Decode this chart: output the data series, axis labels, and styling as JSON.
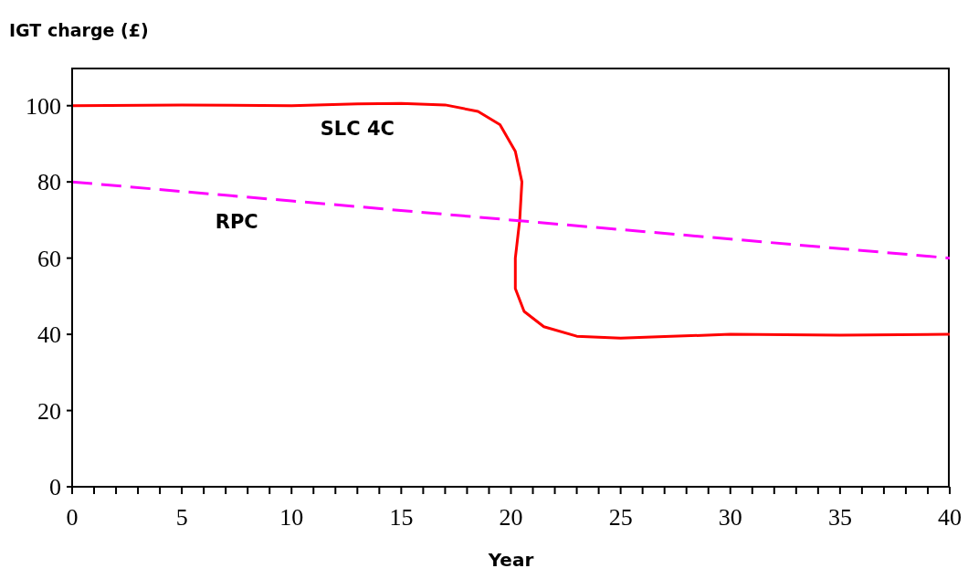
{
  "chart_data": {
    "type": "line",
    "ylabel": "IGT charge (£)",
    "xlabel": "Year",
    "xlim": [
      0,
      40
    ],
    "ylim": [
      0,
      110
    ],
    "xticks": [
      0,
      {
        "value": 1,
        "label": null
      },
      {
        "value": 2,
        "label": null
      },
      {
        "value": 3,
        "label": null
      },
      {
        "value": 4,
        "label": null
      },
      5,
      {
        "value": 6,
        "label": null
      },
      {
        "value": 7,
        "label": null
      },
      {
        "value": 8,
        "label": null
      },
      {
        "value": 9,
        "label": null
      },
      10,
      {
        "value": 11,
        "label": null
      },
      {
        "value": 12,
        "label": null
      },
      {
        "value": 13,
        "label": null
      },
      {
        "value": 14,
        "label": null
      },
      15,
      {
        "value": 16,
        "label": null
      },
      {
        "value": 17,
        "label": null
      },
      {
        "value": 18,
        "label": null
      },
      {
        "value": 19,
        "label": null
      },
      20,
      {
        "value": 21,
        "label": null
      },
      {
        "value": 22,
        "label": null
      },
      {
        "value": 23,
        "label": null
      },
      {
        "value": 24,
        "label": null
      },
      25,
      {
        "value": 26,
        "label": null
      },
      {
        "value": 27,
        "label": null
      },
      {
        "value": 28,
        "label": null
      },
      {
        "value": 29,
        "label": null
      },
      30,
      {
        "value": 31,
        "label": null
      },
      {
        "value": 32,
        "label": null
      },
      {
        "value": 33,
        "label": null
      },
      {
        "value": 34,
        "label": null
      },
      35,
      {
        "value": 36,
        "label": null
      },
      {
        "value": 37,
        "label": null
      },
      {
        "value": 38,
        "label": null
      },
      {
        "value": 39,
        "label": null
      },
      40
    ],
    "yticks": [
      0,
      20,
      40,
      60,
      80,
      100
    ],
    "marker": "none",
    "series": [
      {
        "name": "SLC 4C",
        "color": "#ff0000",
        "line_style": "solid",
        "x": [
          0,
          5,
          10,
          13,
          15,
          17,
          18.5,
          19.5,
          20.2,
          20.5,
          20.4,
          20.2,
          20.2,
          20.6,
          21.5,
          23,
          25,
          27,
          30,
          35,
          40
        ],
        "values": [
          100,
          100.2,
          100,
          100.5,
          100.6,
          100.2,
          98.5,
          95,
          88,
          80,
          70,
          60,
          52,
          46,
          42,
          39.5,
          39,
          39.4,
          40,
          39.8,
          40
        ]
      },
      {
        "name": "RPC",
        "color": "#ff00ff",
        "line_style": "dashed",
        "x": [
          0,
          10,
          20,
          30,
          40
        ],
        "values": [
          80,
          75,
          70,
          65,
          60
        ]
      }
    ]
  }
}
